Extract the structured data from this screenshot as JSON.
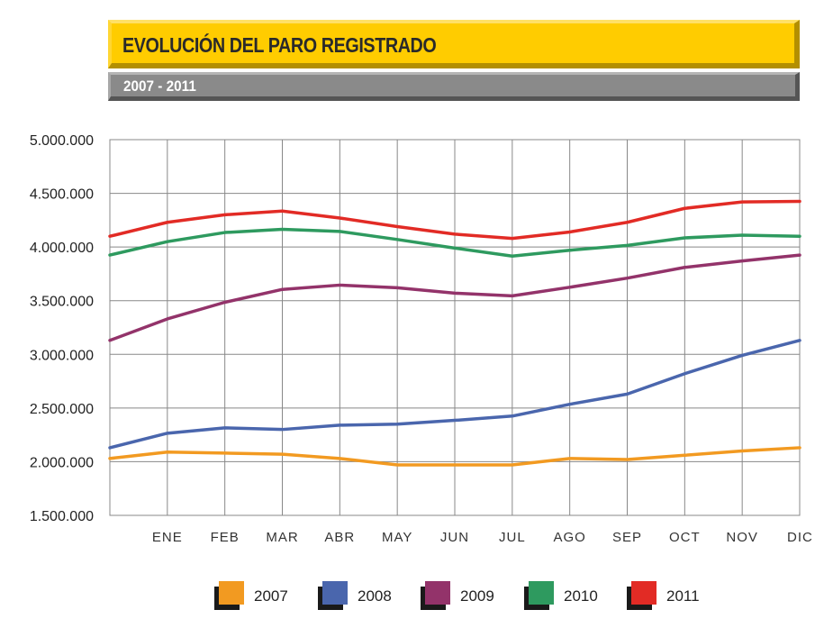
{
  "title": "EVOLUCIÓN DEL PARO REGISTRADO",
  "subtitle": "2007 - 2011",
  "chart_data": {
    "type": "line",
    "categories": [
      "ENE",
      "FEB",
      "MAR",
      "ABR",
      "MAY",
      "JUN",
      "JUL",
      "AGO",
      "SEP",
      "OCT",
      "NOV",
      "DIC"
    ],
    "ylim": [
      1500000,
      5000000
    ],
    "yticks": [
      "5.000.000",
      "4.500.000",
      "4.000.000",
      "3.500.000",
      "3.000.000",
      "2.500.000",
      "2.000.000",
      "1.500.000"
    ],
    "ytick_values": [
      5000000,
      4500000,
      4000000,
      3500000,
      3000000,
      2500000,
      2000000,
      1500000
    ],
    "grid": true,
    "legend_position": "bottom",
    "series": [
      {
        "name": "2007",
        "color": "#f29a21",
        "start": 2030000,
        "values": [
          2090000,
          2080000,
          2070000,
          2030000,
          1970000,
          1970000,
          1970000,
          2030000,
          2020000,
          2060000,
          2100000,
          2130000
        ]
      },
      {
        "name": "2008",
        "color": "#4a66ad",
        "start": 2130000,
        "values": [
          2265000,
          2315000,
          2300000,
          2340000,
          2350000,
          2385000,
          2425000,
          2535000,
          2630000,
          2820000,
          2990000,
          3130000
        ]
      },
      {
        "name": "2009",
        "color": "#93336a",
        "start": 3130000,
        "values": [
          3330000,
          3485000,
          3605000,
          3645000,
          3620000,
          3570000,
          3545000,
          3625000,
          3710000,
          3810000,
          3870000,
          3925000
        ]
      },
      {
        "name": "2010",
        "color": "#2e9a5f",
        "start": 3925000,
        "values": [
          4050000,
          4135000,
          4165000,
          4145000,
          4070000,
          3990000,
          3915000,
          3970000,
          4015000,
          4085000,
          4110000,
          4100000
        ]
      },
      {
        "name": "2011",
        "color": "#e22b25",
        "start": 4100000,
        "values": [
          4230000,
          4300000,
          4335000,
          4270000,
          4190000,
          4120000,
          4080000,
          4140000,
          4230000,
          4360000,
          4420000,
          4425000
        ]
      }
    ]
  }
}
